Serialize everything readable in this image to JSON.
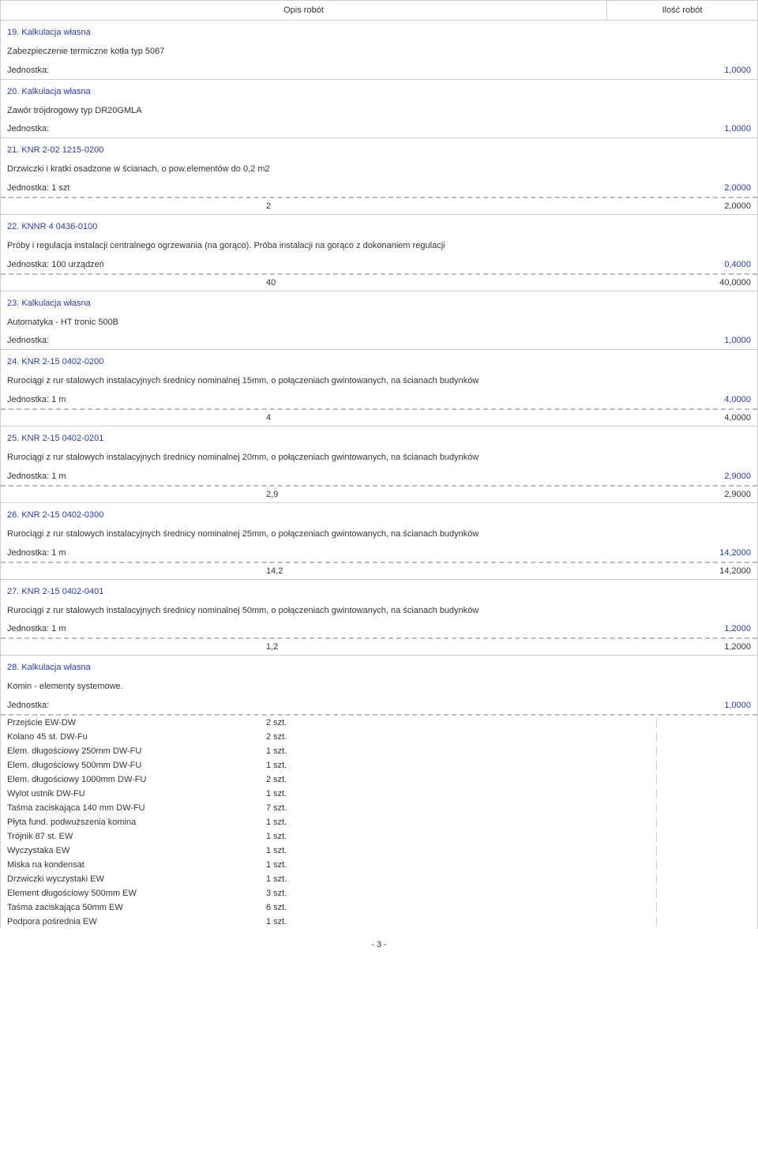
{
  "header": {
    "desc": "Opis robót",
    "qty": "Ilość robót"
  },
  "items": [
    {
      "title": "19. Kalkulacja własna",
      "desc": "Zabezpieczenie termiczne kotła typ 5067",
      "unit": "Jednostka:",
      "value": "1,0000",
      "calcs": []
    },
    {
      "title": "20. Kalkulacja własna",
      "desc": "Zawór trójdrogowy typ DR20GMLA",
      "unit": "Jednostka:",
      "value": "1,0000",
      "calcs": []
    },
    {
      "title": "21. KNR 2-02  1215-0200",
      "desc": "Drzwiczki i kratki osadzone w ścianach, o pow.elementów do 0,2 m2",
      "unit": "Jednostka: 1 szt",
      "value": "2,0000",
      "calcs": [
        {
          "mid": "2",
          "right": "2,0000"
        }
      ]
    },
    {
      "title": "22. KNNR 4  0436-0100",
      "desc": "Próby i regulacja instalacji centralnego ogrzewania (na gorąco). Próba instalacji na gorąco z dokonaniem regulacji",
      "unit": "Jednostka: 100 urządzeń",
      "value": "0,4000",
      "calcs": [
        {
          "mid": "40",
          "right": "40,0000"
        }
      ]
    },
    {
      "title": "23. Kalkulacja własna",
      "desc": "Automatyka  - HT tronic 500B",
      "unit": "Jednostka:",
      "value": "1,0000",
      "calcs": []
    },
    {
      "title": "24. KNR 2-15  0402-0200",
      "desc": "Rurociągi z rur stalowych instalacyjnych średnicy nominalnej 15mm, o połączeniach gwintowanych, na ścianach budynków",
      "unit": "Jednostka: 1 m",
      "value": "4,0000",
      "calcs": [
        {
          "mid": "4",
          "right": "4,0000"
        }
      ]
    },
    {
      "title": "25. KNR 2-15  0402-0201",
      "desc": "Rurociągi z rur stalowych instalacyjnych średnicy nominalnej 20mm, o połączeniach gwintowanych, na ścianach budynków",
      "unit": "Jednostka: 1 m",
      "value": "2,9000",
      "calcs": [
        {
          "mid": "2,9",
          "right": "2,9000"
        }
      ]
    },
    {
      "title": "26. KNR 2-15  0402-0300",
      "desc": "Rurociągi z rur stalowych instalacyjnych średnicy nominalnej 25mm, o połączeniach gwintowanych, na ścianach budynków",
      "unit": "Jednostka: 1 m",
      "value": "14,2000",
      "calcs": [
        {
          "mid": "14,2",
          "right": "14,2000"
        }
      ]
    },
    {
      "title": "27. KNR 2-15  0402-0401",
      "desc": "Rurociągi z rur stalowych instalacyjnych średnicy nominalnej 50mm, o połączeniach gwintowanych, na ścianach budynków",
      "unit": "Jednostka: 1 m",
      "value": "1,2000",
      "calcs": [
        {
          "mid": "1,2",
          "right": "1,2000"
        }
      ]
    },
    {
      "title": "28. Kalkulacja własna",
      "desc": "Komin - elementy systemowe.",
      "unit": "Jednostka:",
      "value": "1,0000",
      "calcs": [],
      "subitems": [
        {
          "left": "Przejście EW-DW",
          "mid": "2 szt."
        },
        {
          "left": "Kolano 45 st. DW-Fu",
          "mid": "2 szt."
        },
        {
          "left": "Elem. długościowy 250mm DW-FU",
          "mid": "1 szt."
        },
        {
          "left": "Elem. długościowy 500mm DW-FU",
          "mid": "1 szt."
        },
        {
          "left": "Elem. długościowy 1000mm DW-FU",
          "mid": "2 szt."
        },
        {
          "left": "Wylot ustnik DW-FU",
          "mid": "1 szt."
        },
        {
          "left": "Taśma zaciskająca 140 mm DW-FU",
          "mid": "7 szt."
        },
        {
          "left": "Płyta fund. podwuższenia komina",
          "mid": "1 szt."
        },
        {
          "left": "Trójnik 87 st. EW",
          "mid": "1 szt."
        },
        {
          "left": "Wyczystaka EW",
          "mid": "1 szt."
        },
        {
          "left": "Miska na kondensat",
          "mid": "1 szt."
        },
        {
          "left": "Drzwiczki wyczystaki EW",
          "mid": "1 szt."
        },
        {
          "left": "Element długościowy  500mm EW",
          "mid": "3 szt."
        },
        {
          "left": "Taśma zaciskająca 50mm EW",
          "mid": "6 szt."
        },
        {
          "left": "Podpora pośrednia EW",
          "mid": "1 szt."
        }
      ]
    }
  ],
  "footer": "- 3 -"
}
